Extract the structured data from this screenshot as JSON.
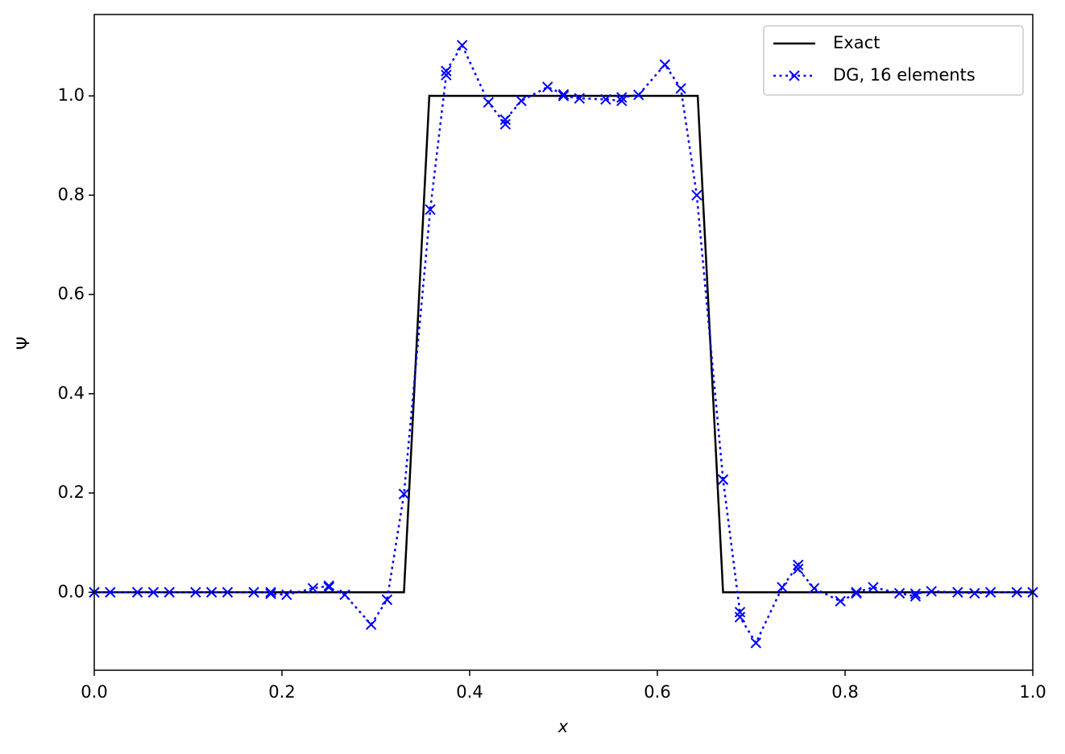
{
  "chart_data": {
    "type": "line",
    "x_label": "x",
    "y_label": "Ψ",
    "xlim": [
      0,
      1
    ],
    "ylim": [
      -0.157,
      1.164
    ],
    "xticks": [
      {
        "value": 0,
        "label": "0.0"
      },
      0.2,
      0.4,
      0.6,
      0.8,
      {
        "value": 1,
        "label": "1.0"
      }
    ],
    "yticks": [
      {
        "value": 0,
        "label": "0.0"
      },
      0.2,
      0.4,
      0.6,
      0.8,
      {
        "value": 1,
        "label": "1.0"
      }
    ],
    "legend": "upper right",
    "series": [
      {
        "name": "Exact",
        "color": "#000000",
        "style": "solid",
        "marker": "none",
        "x": [
          0,
          0.33,
          0.357,
          0.643,
          0.67,
          1
        ],
        "values": [
          0,
          0,
          1,
          1,
          0,
          0
        ]
      },
      {
        "name": "DG, 16 elements",
        "color": "#0000ff",
        "style": "dotted",
        "marker": "x",
        "x": [
          0,
          0.017,
          0.046,
          0.063,
          0.08,
          0.108,
          0.125,
          0.142,
          0.17,
          0.188,
          0.188,
          0.205,
          0.233,
          0.25,
          0.25,
          0.267,
          0.295,
          0.312,
          0.33,
          0.358,
          0.375,
          0.375,
          0.392,
          0.42,
          0.438,
          0.438,
          0.455,
          0.483,
          0.5,
          0.5,
          0.517,
          0.545,
          0.562,
          0.562,
          0.58,
          0.608,
          0.625,
          0.642,
          0.67,
          0.688,
          0.688,
          0.705,
          0.733,
          0.75,
          0.75,
          0.767,
          0.795,
          0.812,
          0.812,
          0.83,
          0.858,
          0.875,
          0.875,
          0.892,
          0.92,
          0.938,
          0.955,
          0.983,
          1
        ],
        "values": [
          0,
          0,
          0,
          0,
          0,
          0,
          0,
          0,
          0,
          0,
          -0.003,
          -0.005,
          0.008,
          0.013,
          0.01,
          -0.005,
          -0.065,
          -0.015,
          0.198,
          0.771,
          1.042,
          1.05,
          1.102,
          0.987,
          0.943,
          0.952,
          0.99,
          1.018,
          1.003,
          1,
          0.995,
          0.993,
          0.99,
          0.997,
          1.002,
          1.063,
          1.015,
          0.8,
          0.227,
          -0.04,
          -0.05,
          -0.102,
          0.01,
          0.055,
          0.047,
          0.008,
          -0.018,
          -0.002,
          0,
          0.01,
          -0.002,
          -0.008,
          -0.003,
          0.002,
          0,
          -0.002,
          0,
          0,
          0
        ]
      }
    ]
  }
}
